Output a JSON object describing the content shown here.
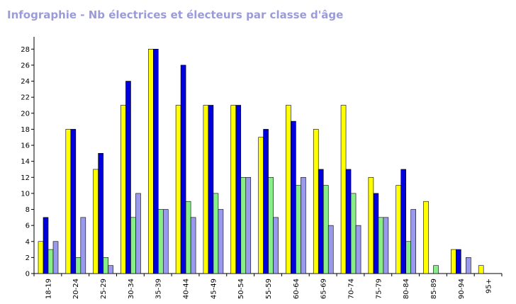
{
  "chart_data": {
    "type": "bar",
    "title": "Infographie - Nb électrices et électeurs par classe d'âge",
    "xlabel": "",
    "ylabel": "",
    "ylim": [
      0,
      29
    ],
    "yticks": [
      0,
      2,
      4,
      6,
      8,
      10,
      12,
      14,
      16,
      18,
      20,
      22,
      24,
      26,
      28
    ],
    "grid": false,
    "legend": "none",
    "categories": [
      "18-19",
      "20-24",
      "25-29",
      "30-34",
      "35-39",
      "40-44",
      "45-49",
      "50-54",
      "55-59",
      "60-64",
      "65-69",
      "70-74",
      "75-79",
      "80-84",
      "85-89",
      "90-94",
      "95+"
    ],
    "series": [
      {
        "color": "#ffff00",
        "values": [
          4,
          18,
          13,
          21,
          28,
          21,
          21,
          21,
          17,
          21,
          18,
          21,
          12,
          11,
          9,
          3,
          1
        ]
      },
      {
        "color": "#0000dd",
        "values": [
          7,
          18,
          15,
          24,
          28,
          26,
          21,
          21,
          18,
          19,
          13,
          13,
          10,
          13,
          0,
          3,
          0
        ]
      },
      {
        "color": "#88ee88",
        "values": [
          3,
          2,
          2,
          7,
          8,
          9,
          10,
          12,
          12,
          11,
          11,
          10,
          7,
          4,
          1,
          0,
          0
        ]
      },
      {
        "color": "#9999ee",
        "values": [
          4,
          7,
          1,
          10,
          8,
          7,
          8,
          12,
          7,
          12,
          6,
          6,
          7,
          8,
          0,
          2,
          0
        ]
      }
    ]
  }
}
